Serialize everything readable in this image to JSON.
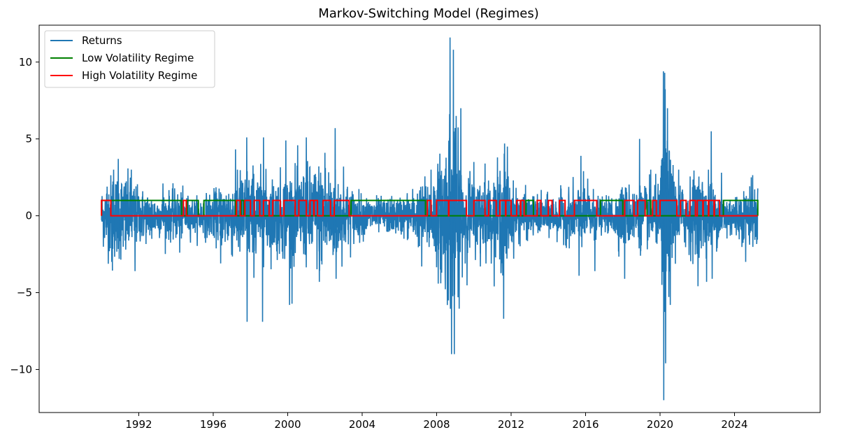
{
  "chart_data": {
    "type": "line",
    "title": "Markov-Switching Model (Regimes)",
    "xlabel": "",
    "ylabel": "",
    "x_range": [
      1990.0,
      2025.25
    ],
    "xlim": [
      1986.65,
      2028.6
    ],
    "ylim": [
      -12.8,
      12.4
    ],
    "x_ticks": [
      {
        "value": 1992,
        "label": "1992"
      },
      {
        "value": 1996,
        "label": "1996"
      },
      {
        "value": 2000,
        "label": "2000"
      },
      {
        "value": 2004,
        "label": "2004"
      },
      {
        "value": 2008,
        "label": "2008"
      },
      {
        "value": 2012,
        "label": "2012"
      },
      {
        "value": 2016,
        "label": "2016"
      },
      {
        "value": 2020,
        "label": "2020"
      },
      {
        "value": 2024,
        "label": "2024"
      }
    ],
    "y_ticks": [
      {
        "value": 10,
        "label": "10"
      },
      {
        "value": 5,
        "label": "5"
      },
      {
        "value": 0,
        "label": "0"
      },
      {
        "value": -5,
        "label": "−5"
      },
      {
        "value": -10,
        "label": "−10"
      }
    ],
    "grid": false,
    "legend_position": "top-left",
    "series": [
      {
        "name": "Returns",
        "color": "#1f77b4"
      },
      {
        "name": "Low Volatility Regime",
        "color": "#008000"
      },
      {
        "name": "High Volatility Regime",
        "color": "#ff0000"
      }
    ],
    "volatility_envelope": [
      [
        1990.0,
        1.8
      ],
      [
        1990.5,
        2.6
      ],
      [
        1991.0,
        2.8
      ],
      [
        1991.5,
        2.4
      ],
      [
        1992.0,
        1.8
      ],
      [
        1993.0,
        1.3
      ],
      [
        1994.0,
        1.6
      ],
      [
        1995.0,
        1.1
      ],
      [
        1996.0,
        1.5
      ],
      [
        1997.0,
        2.5
      ],
      [
        1998.0,
        3.2
      ],
      [
        1999.0,
        2.4
      ],
      [
        2000.0,
        2.8
      ],
      [
        2001.0,
        3.0
      ],
      [
        2002.0,
        3.6
      ],
      [
        2003.0,
        2.2
      ],
      [
        2004.0,
        1.3
      ],
      [
        2005.0,
        1.1
      ],
      [
        2006.0,
        1.2
      ],
      [
        2007.0,
        1.8
      ],
      [
        2008.0,
        3.0
      ],
      [
        2008.8,
        6.5
      ],
      [
        2009.3,
        3.5
      ],
      [
        2010.0,
        2.2
      ],
      [
        2011.0,
        2.2
      ],
      [
        2011.6,
        3.8
      ],
      [
        2012.0,
        2.0
      ],
      [
        2013.0,
        1.3
      ],
      [
        2014.0,
        1.2
      ],
      [
        2015.0,
        1.6
      ],
      [
        2016.0,
        2.0
      ],
      [
        2017.0,
        0.9
      ],
      [
        2018.0,
        2.0
      ],
      [
        2019.0,
        1.8
      ],
      [
        2020.0,
        2.0
      ],
      [
        2020.2,
        7.0
      ],
      [
        2020.6,
        3.2
      ],
      [
        2021.0,
        1.8
      ],
      [
        2022.0,
        2.8
      ],
      [
        2023.0,
        1.8
      ],
      [
        2024.0,
        1.4
      ],
      [
        2025.25,
        2.0
      ]
    ],
    "spikes": [
      {
        "x": 1990.3,
        "y": 1.9
      },
      {
        "x": 1990.55,
        "y": -3.0
      },
      {
        "x": 1990.65,
        "y": 3.0
      },
      {
        "x": 1990.9,
        "y": 3.7
      },
      {
        "x": 1991.3,
        "y": -2.2
      },
      {
        "x": 1991.6,
        "y": 3.0
      },
      {
        "x": 1991.8,
        "y": -3.6
      },
      {
        "x": 1992.7,
        "y": -1.5
      },
      {
        "x": 1993.3,
        "y": 2.1
      },
      {
        "x": 1994.2,
        "y": -2.4
      },
      {
        "x": 1996.4,
        "y": -3.1
      },
      {
        "x": 1997.3,
        "y": 3.0
      },
      {
        "x": 1997.8,
        "y": 5.1
      },
      {
        "x": 1997.82,
        "y": -6.9
      },
      {
        "x": 1998.7,
        "y": 5.1
      },
      {
        "x": 1998.65,
        "y": -6.9
      },
      {
        "x": 1999.9,
        "y": 4.9
      },
      {
        "x": 2000.1,
        "y": -5.8
      },
      {
        "x": 2001.0,
        "y": 5.1
      },
      {
        "x": 2001.7,
        "y": -4.3
      },
      {
        "x": 2002.0,
        "y": 4.1
      },
      {
        "x": 2002.55,
        "y": 5.7
      },
      {
        "x": 2002.6,
        "y": -4.1
      },
      {
        "x": 2003.0,
        "y": 3.2
      },
      {
        "x": 2007.2,
        "y": -3.3
      },
      {
        "x": 2007.7,
        "y": 3.0
      },
      {
        "x": 2008.2,
        "y": -3.5
      },
      {
        "x": 2008.72,
        "y": 11.6
      },
      {
        "x": 2008.8,
        "y": -9.0
      },
      {
        "x": 2008.9,
        "y": 10.8
      },
      {
        "x": 2008.95,
        "y": -9.0
      },
      {
        "x": 2009.05,
        "y": 6.5
      },
      {
        "x": 2009.15,
        "y": -5.3
      },
      {
        "x": 2009.3,
        "y": 7.0
      },
      {
        "x": 2010.0,
        "y": 3.5
      },
      {
        "x": 2010.35,
        "y": -3.3
      },
      {
        "x": 2010.6,
        "y": 3.4
      },
      {
        "x": 2011.6,
        "y": -6.7
      },
      {
        "x": 2011.65,
        "y": 4.7
      },
      {
        "x": 2011.8,
        "y": 4.5
      },
      {
        "x": 2015.65,
        "y": -3.9
      },
      {
        "x": 2015.75,
        "y": 3.9
      },
      {
        "x": 2016.5,
        "y": -3.6
      },
      {
        "x": 2018.1,
        "y": -4.1
      },
      {
        "x": 2018.9,
        "y": 5.0
      },
      {
        "x": 2018.95,
        "y": -2.6
      },
      {
        "x": 2019.5,
        "y": 3.0
      },
      {
        "x": 2020.1,
        "y": -4.5
      },
      {
        "x": 2020.18,
        "y": 9.4
      },
      {
        "x": 2020.2,
        "y": -12.0
      },
      {
        "x": 2020.25,
        "y": 9.3
      },
      {
        "x": 2020.3,
        "y": -9.6
      },
      {
        "x": 2020.4,
        "y": 7.0
      },
      {
        "x": 2020.55,
        "y": -5.8
      },
      {
        "x": 2020.7,
        "y": 3.3
      },
      {
        "x": 2021.0,
        "y": 3.0
      },
      {
        "x": 2022.5,
        "y": -4.3
      },
      {
        "x": 2022.6,
        "y": 3.0
      },
      {
        "x": 2022.75,
        "y": 5.5
      },
      {
        "x": 2022.8,
        "y": -4.1
      },
      {
        "x": 2023.3,
        "y": 2.8
      },
      {
        "x": 2024.6,
        "y": -3.0
      },
      {
        "x": 2024.9,
        "y": 2.5
      }
    ],
    "low_regime_high_intervals": [
      [
        1990.0,
        1994.3
      ],
      [
        1994.6,
        1995.2
      ],
      [
        1995.5,
        1997.2
      ],
      [
        1997.5,
        1997.65
      ],
      [
        2003.4,
        2007.4
      ],
      [
        2012.8,
        2013.2
      ],
      [
        2016.8,
        2018.0
      ],
      [
        2019.3,
        2019.5
      ],
      [
        2023.4,
        2025.25
      ]
    ],
    "high_regime_high_intervals": [
      [
        1990.0,
        1990.5
      ],
      [
        1994.4,
        1994.55
      ],
      [
        1997.25,
        1997.45
      ],
      [
        1997.7,
        1998.0
      ],
      [
        1998.2,
        1998.5
      ],
      [
        1998.7,
        1999.0
      ],
      [
        1999.2,
        1999.6
      ],
      [
        1999.8,
        2000.4
      ],
      [
        2000.6,
        2001.0
      ],
      [
        2001.2,
        2001.6
      ],
      [
        2001.9,
        2002.3
      ],
      [
        2002.5,
        2003.3
      ],
      [
        2007.5,
        2007.7
      ],
      [
        2008.0,
        2009.6
      ],
      [
        2010.0,
        2010.6
      ],
      [
        2010.8,
        2011.2
      ],
      [
        2011.4,
        2012.0
      ],
      [
        2012.3,
        2012.7
      ],
      [
        2013.4,
        2013.6
      ],
      [
        2014.0,
        2014.2
      ],
      [
        2014.6,
        2014.9
      ],
      [
        2015.4,
        2016.6
      ],
      [
        2018.1,
        2018.6
      ],
      [
        2018.8,
        2019.2
      ],
      [
        2019.6,
        2019.8
      ],
      [
        2020.0,
        2020.9
      ],
      [
        2021.1,
        2021.4
      ],
      [
        2021.6,
        2021.9
      ],
      [
        2022.0,
        2023.2
      ]
    ]
  }
}
